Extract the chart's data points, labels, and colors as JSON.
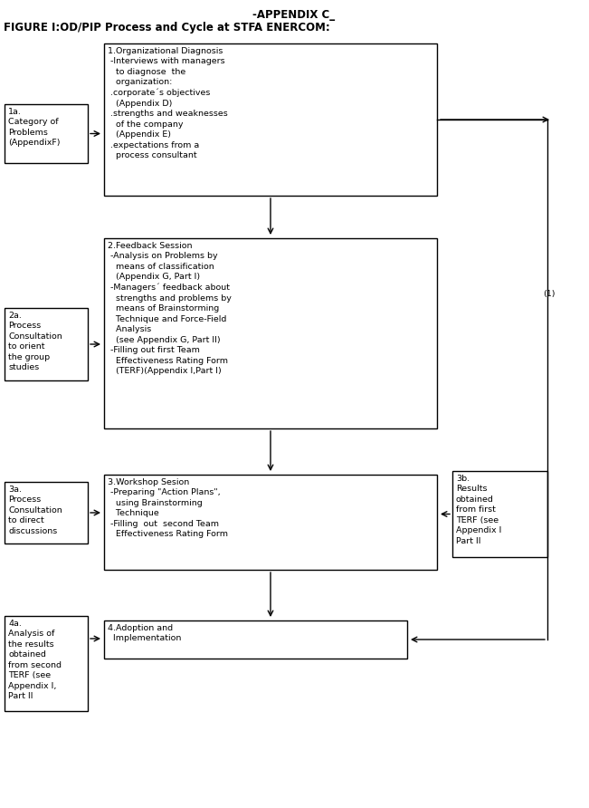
{
  "title_line1": "-APPENDIX C_",
  "title_line2": "FIGURE I:OD/PIP Process and Cycle at STFA ENERCOM:",
  "background_color": "#ffffff",
  "font_family": "Courier New",
  "box1_text": "1.Organizational Diagnosis\n -Interviews with managers\n   to diagnose  the\n   organization:\n .corporate´s objectives\n   (Appendix D)\n .strengths and weaknesses\n   of the company\n   (Appendix E)\n .expectations from a\n   process consultant",
  "box2_text": "2.Feedback Session\n -Analysis on Problems by\n   means of classification\n   (Appendix G, Part I)\n -Managers´ feedback about\n   strengths and problems by\n   means of Brainstorming\n   Technique and Force-Field\n   Analysis\n   (see Appendix G, Part II)\n -Filling out first Team\n   Effectiveness Rating Form\n   (TERF)(Appendix I,Part I)",
  "box3_text": "3.Workshop Sesion\n -Preparing \"Action Plans\",\n   using Brainstorming\n   Technique\n -Filling  out  second Team\n   Effectiveness Rating Form",
  "box4_text": "4.Adoption and\n  Implementation",
  "box1a_text": "1a.\nCategory of\nProblems\n(AppendixF)",
  "box2a_text": "2a.\nProcess\nConsultation\nto orient\nthe group\nstudies",
  "box3a_text": "3a.\nProcess\nConsultation\nto direct\ndiscussions",
  "box3b_text": "3b.\nResults\nobtained\nfrom first\nTERF (see\nAppendix I\nPart II",
  "box4a_text": "4a.\nAnalysis of\nthe results\nobtained\nfrom second\nTERF (see\nAppendix I,\nPart II",
  "note1": "(1)"
}
